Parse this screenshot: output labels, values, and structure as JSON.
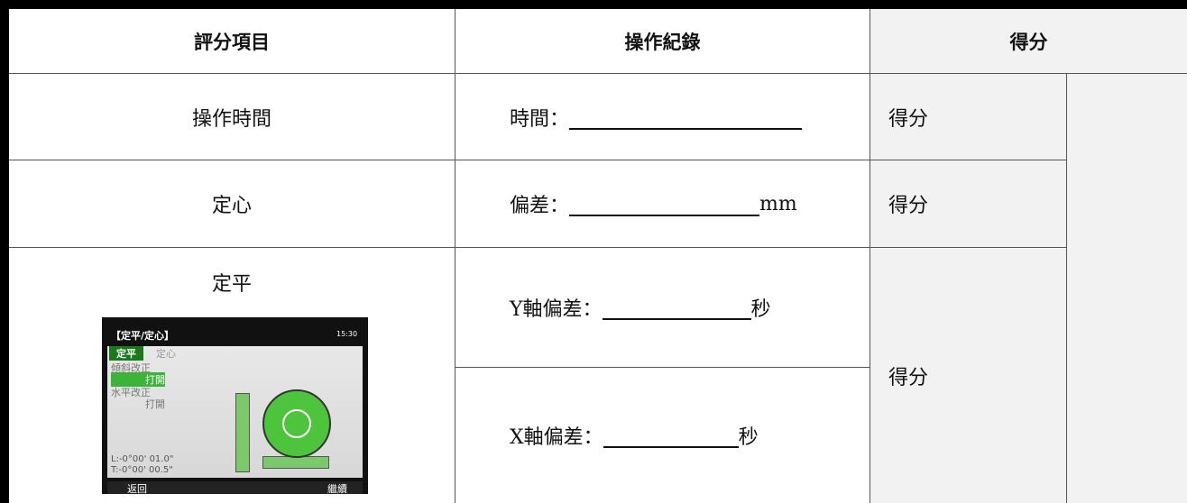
{
  "table": {
    "header": [
      "評分項目",
      "操作紀錄",
      "得分"
    ],
    "rows": [
      {
        "item": "操作時間",
        "record_label": "時間：",
        "record_unit": null,
        "score": "得分"
      },
      {
        "item": "定心",
        "record_label": "偏差：",
        "record_unit": "mm",
        "score": "得分"
      },
      {
        "item": "定平",
        "record_label": "Y軸偏差：",
        "record_unit": "秒",
        "score": "得分"
      },
      {
        "item": null,
        "record_label": "X軸偏差：",
        "record_unit": "秒",
        "score": null
      }
    ]
  },
  "device_screen": {
    "title": "【定平/定心】",
    "time": "15:30",
    "tabs": [
      "定平",
      "定心"
    ],
    "tilt_label": "傾斜改正",
    "tilt_state": "打開",
    "level_label": "水平改正",
    "level_state": "打開",
    "l_reading": "L:-0°00' 01.0\"",
    "t_reading": "T:-0°00' 00.5\"",
    "back": "返回",
    "next": "繼續"
  }
}
